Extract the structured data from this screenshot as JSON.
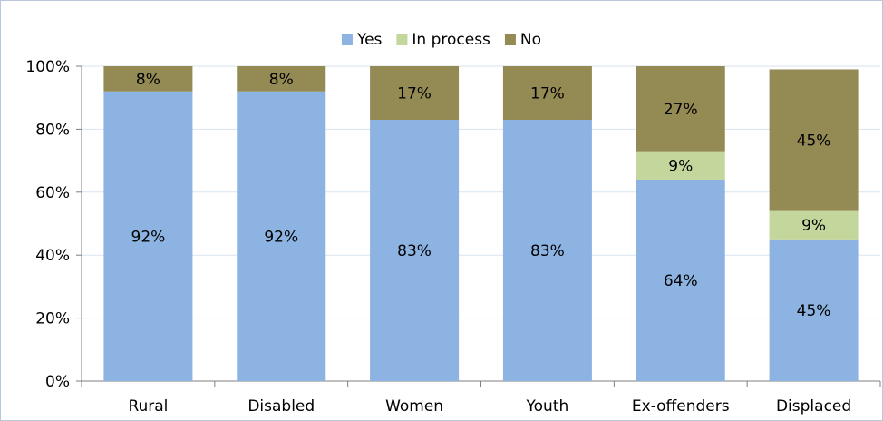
{
  "chart_data": {
    "type": "bar",
    "stacked": true,
    "percent": true,
    "categories": [
      "Rural",
      "Disabled",
      "Women",
      "Youth",
      "Ex-offenders",
      "Displaced"
    ],
    "series": [
      {
        "name": "Yes",
        "color": "#8db3e2",
        "values": [
          92,
          92,
          83,
          83,
          64,
          45
        ],
        "labels": [
          "92%",
          "92%",
          "83%",
          "83%",
          "64%",
          "45%"
        ]
      },
      {
        "name": "In process",
        "color": "#c3d69b",
        "values": [
          0,
          0,
          0,
          0,
          9,
          9
        ],
        "labels": [
          "",
          "",
          "",
          "",
          "9%",
          "9%"
        ]
      },
      {
        "name": "No",
        "color": "#948a54",
        "values": [
          8,
          8,
          17,
          17,
          27,
          45
        ],
        "labels": [
          "8%",
          "8%",
          "17%",
          "17%",
          "27%",
          "45%"
        ]
      }
    ],
    "ylim": [
      0,
      100
    ],
    "yticks": [
      "0%",
      "20%",
      "40%",
      "60%",
      "80%",
      "100%"
    ],
    "grid": true,
    "gridline_color": "#d9e3f0",
    "legend_position": "top"
  }
}
